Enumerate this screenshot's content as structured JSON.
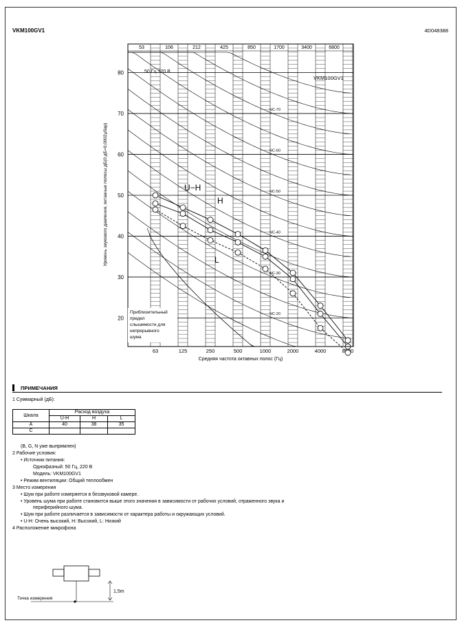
{
  "header": {
    "model": "VKM100GV1",
    "doc_number": "4D048388"
  },
  "chart_data": {
    "type": "line",
    "title": "VKM100GV1",
    "subtitle": "50 Гц  220 В",
    "xlabel": "Средняя частота октавных полос (Гц)",
    "ylabel": "Уровень звукового давления, октавные полосы дБ(0 дБ=0,0002µбар)",
    "x": [
      "63",
      "125",
      "250",
      "500",
      "1000",
      "2000",
      "4000",
      "8000"
    ],
    "top_labels": [
      "53",
      "106",
      "212",
      "425",
      "850",
      "1700",
      "3400",
      "6800"
    ],
    "y_ticks": [
      "20",
      "30",
      "40",
      "50",
      "60",
      "70",
      "80"
    ],
    "ylim": [
      13,
      87
    ],
    "nc_labels": [
      "NC-70",
      "NC-60",
      "NC-50",
      "NC-40",
      "NC-30",
      "NC-20"
    ],
    "nc_values": [
      70,
      60,
      50,
      40,
      30,
      20
    ],
    "series": [
      {
        "name": "U-H",
        "values": [
          50,
          47,
          44,
          40.5,
          36.5,
          31,
          23,
          14.5
        ]
      },
      {
        "name": "H",
        "values": [
          48,
          45.5,
          41.5,
          38.5,
          35,
          29.5,
          21,
          13
        ]
      },
      {
        "name": "L",
        "values": [
          46.5,
          42.5,
          39,
          36,
          32,
          26,
          17.5,
          11.5
        ]
      }
    ],
    "threshold_label": [
      "Приблизительный",
      "предел",
      "слышимости для",
      "непрерывного",
      "шума"
    ]
  },
  "notes": {
    "heading": "ПРИМЕЧАНИЯ",
    "n1": "1    Суммарный (дБ):",
    "table": {
      "col1": "Шкала",
      "group": "Расход воздуха",
      "sub": [
        "U-H",
        "H",
        "L"
      ],
      "rows": [
        [
          "A",
          "40",
          "38",
          "35"
        ],
        [
          "C",
          "",
          "",
          ""
        ]
      ]
    },
    "n1_after": "(B, G, N уже выпрямлен)",
    "n2": "2    Рабочие условия:",
    "n2_a": "•    Источник питания:",
    "n2_b": "Однофазный: 50 Гц, 220 В",
    "n2_c": "Модель: VKM100GV1",
    "n2_d": "•    Режим вентиляции: Общий теплообмен",
    "n3": "3    Место измерения",
    "n3_a": "•    Шум при работе измеряется в беззвуковой камере.",
    "n3_b": "•    Уровень шума при работе становится выше этого значения в зависимости от рабочих условий, отраженного звука и",
    "n3_b2": "периферийного шума.",
    "n3_c": "•    Шум при работе различается в зависимости от характера работы и окружающих условий.",
    "n3_d": "•    U-H: Очень высокий, H: Высокий, L: Низкий",
    "n4": "4    Расположение микрофона",
    "mic_label": "Точка измерения",
    "mic_height": "1,5m"
  }
}
